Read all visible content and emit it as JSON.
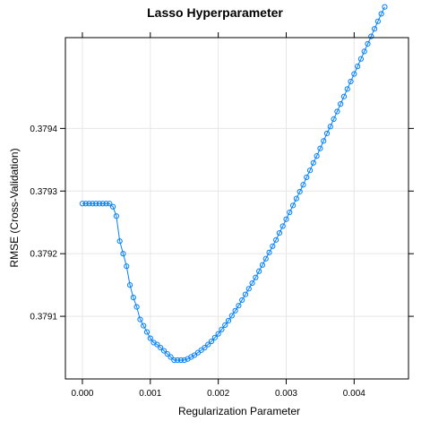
{
  "chart_data": {
    "type": "line",
    "title": "Lasso Hyperparameter",
    "xlabel": "Regularization Parameter",
    "ylabel": "RMSE (Cross-Validation)",
    "xlim": [
      -0.00025,
      0.0048
    ],
    "ylim": [
      0.379,
      0.379545
    ],
    "x_ticks": [
      0.0,
      0.001,
      0.002,
      0.003,
      0.004
    ],
    "x_tick_labels": [
      "0.000",
      "0.001",
      "0.002",
      "0.003",
      "0.004"
    ],
    "y_ticks": [
      0.3791,
      0.3792,
      0.3793,
      0.3794
    ],
    "y_tick_labels": [
      "0.3791",
      "0.3792",
      "0.3793",
      "0.3794"
    ],
    "grid": true,
    "color": "#0080ff",
    "series": [
      {
        "x": [
          0.0,
          5e-05,
          0.0001,
          0.00015,
          0.0002,
          0.00025,
          0.0003,
          0.00035,
          0.0004,
          0.00045,
          0.0005,
          0.00055,
          0.0006,
          0.00065,
          0.0007,
          0.00075,
          0.0008,
          0.00085,
          0.0009,
          0.00095,
          0.001,
          0.00105,
          0.0011,
          0.00115,
          0.0012,
          0.00125,
          0.0013,
          0.00135,
          0.0014,
          0.00145,
          0.0015,
          0.00155,
          0.0016,
          0.00165,
          0.0017,
          0.00175,
          0.0018,
          0.00185,
          0.0019,
          0.00195,
          0.002,
          0.00205,
          0.0021,
          0.00215,
          0.0022,
          0.00225,
          0.0023,
          0.00235,
          0.0024,
          0.00245,
          0.0025,
          0.00255,
          0.0026,
          0.00265,
          0.0027,
          0.00275,
          0.0028,
          0.00285,
          0.0029,
          0.00295,
          0.003,
          0.00305,
          0.0031,
          0.00315,
          0.0032,
          0.00325,
          0.0033,
          0.00335,
          0.0034,
          0.00345,
          0.0035,
          0.00355,
          0.0036,
          0.00365,
          0.0037,
          0.00375,
          0.0038,
          0.00385,
          0.0039,
          0.00395,
          0.004,
          0.00405,
          0.0041,
          0.00415,
          0.0042,
          0.00425,
          0.0043,
          0.00435,
          0.0044,
          0.00445
        ],
        "y": [
          0.37928,
          0.37928,
          0.37928,
          0.37928,
          0.37928,
          0.37928,
          0.37928,
          0.37928,
          0.37928,
          0.379275,
          0.37926,
          0.37922,
          0.3792,
          0.37918,
          0.37915,
          0.37913,
          0.379115,
          0.379095,
          0.379085,
          0.379075,
          0.379065,
          0.379058,
          0.379055,
          0.37905,
          0.379045,
          0.37904,
          0.379035,
          0.37903,
          0.37903,
          0.37903,
          0.37903,
          0.379032,
          0.379035,
          0.379038,
          0.379042,
          0.379046,
          0.37905,
          0.379055,
          0.37906,
          0.379066,
          0.379072,
          0.379079,
          0.379086,
          0.379093,
          0.379101,
          0.379109,
          0.379117,
          0.379126,
          0.379135,
          0.379144,
          0.379153,
          0.379162,
          0.379172,
          0.379182,
          0.379192,
          0.379202,
          0.379212,
          0.379222,
          0.379233,
          0.379244,
          0.379255,
          0.379266,
          0.379277,
          0.379288,
          0.379299,
          0.37931,
          0.379322,
          0.379333,
          0.379345,
          0.379356,
          0.379368,
          0.37938,
          0.379392,
          0.379403,
          0.379415,
          0.379427,
          0.379439,
          0.379451,
          0.379463,
          0.379475,
          0.379487,
          0.379499,
          0.379511,
          0.379523,
          0.379535,
          0.379547,
          0.379559,
          0.379571,
          0.379583,
          0.379594
        ]
      }
    ]
  }
}
